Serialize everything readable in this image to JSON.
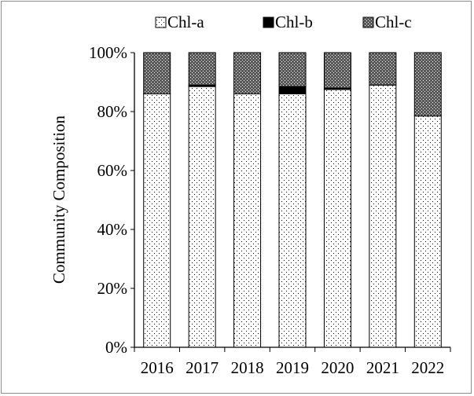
{
  "chart_data": {
    "type": "bar",
    "stacked": true,
    "percent": true,
    "categories": [
      "2016",
      "2017",
      "2018",
      "2019",
      "2020",
      "2021",
      "2022"
    ],
    "series": [
      {
        "name": "Chl-a",
        "values": [
          86,
          88.5,
          86,
          86,
          87.5,
          89,
          78.5
        ],
        "pattern": "dots"
      },
      {
        "name": "Chl-b",
        "values": [
          0,
          0.5,
          0,
          2.5,
          0.5,
          0,
          0
        ],
        "pattern": "solid"
      },
      {
        "name": "Chl-c",
        "values": [
          14,
          11,
          14,
          11.5,
          12,
          11,
          21.5
        ],
        "pattern": "cross"
      }
    ],
    "ylabel": "Community Composition",
    "xlabel": "",
    "ylim": [
      0,
      100
    ],
    "yticks": [
      "0%",
      "20%",
      "40%",
      "60%",
      "80%",
      "100%"
    ],
    "legend_position": "top",
    "grid": false
  }
}
